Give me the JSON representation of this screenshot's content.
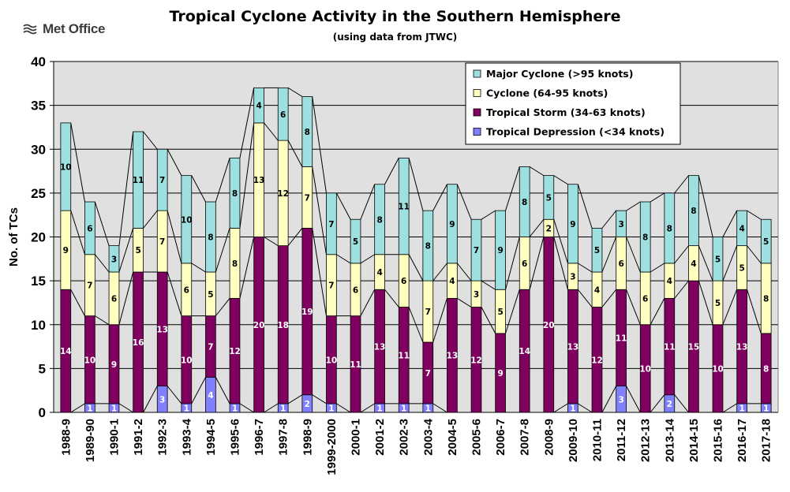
{
  "logo": {
    "text": "Met Office"
  },
  "chart_data": {
    "type": "bar",
    "stacked": true,
    "title": "Tropical Cyclone Activity in the Southern Hemisphere",
    "subtitle": "(using data from JTWC)",
    "ylabel": "No. of TCs",
    "xlabel": "",
    "ylim": [
      0,
      40
    ],
    "yticks": [
      0,
      5,
      10,
      15,
      20,
      25,
      30,
      35,
      40
    ],
    "grid": true,
    "legend_position": "top-right",
    "categories": [
      "1988-9",
      "1989-90",
      "1990-1",
      "1991-2",
      "1992-3",
      "1993-4",
      "1994-5",
      "1995-6",
      "1996-7",
      "1997-8",
      "1998-9",
      "1999-2000",
      "2000-1",
      "2001-2",
      "2002-3",
      "2003-4",
      "2004-5",
      "2005-6",
      "2006-7",
      "2007-8",
      "2008-9",
      "2009-10",
      "2010-11",
      "2011-12",
      "2012-13",
      "2013-14",
      "2014-15",
      "2015-16",
      "2016-17",
      "2017-18"
    ],
    "series": [
      {
        "name": "Tropical Depression (<34 knots)",
        "color": "#8080ff",
        "label_color": "#ffffff",
        "values": [
          0,
          1,
          1,
          0,
          3,
          1,
          4,
          1,
          0,
          1,
          2,
          1,
          0,
          1,
          1,
          1,
          0,
          0,
          0,
          0,
          0,
          1,
          0,
          3,
          0,
          2,
          0,
          0,
          1,
          1
        ]
      },
      {
        "name": "Tropical Storm (34-63 knots)",
        "color": "#800060",
        "label_color": "#ffffff",
        "values": [
          14,
          10,
          9,
          16,
          13,
          10,
          7,
          12,
          20,
          18,
          19,
          10,
          11,
          13,
          11,
          7,
          13,
          12,
          9,
          14,
          20,
          13,
          12,
          11,
          10,
          11,
          15,
          10,
          13,
          8
        ]
      },
      {
        "name": "Cyclone (64-95 knots)",
        "color": "#ffffc0",
        "label_color": "#000000",
        "values": [
          9,
          7,
          6,
          5,
          7,
          6,
          5,
          8,
          13,
          12,
          7,
          7,
          6,
          4,
          6,
          7,
          4,
          3,
          5,
          6,
          2,
          3,
          4,
          6,
          6,
          4,
          4,
          5,
          5,
          8
        ]
      },
      {
        "name": "Major Cyclone (>95 knots)",
        "color": "#9ee0e0",
        "label_color": "#000000",
        "values": [
          10,
          6,
          3,
          11,
          7,
          10,
          8,
          8,
          4,
          6,
          8,
          7,
          5,
          8,
          11,
          8,
          9,
          7,
          9,
          8,
          5,
          9,
          5,
          3,
          8,
          8,
          8,
          5,
          4,
          5
        ]
      }
    ]
  },
  "colors": {
    "plot_background": "#e0e0e0",
    "gridline": "#000000"
  }
}
